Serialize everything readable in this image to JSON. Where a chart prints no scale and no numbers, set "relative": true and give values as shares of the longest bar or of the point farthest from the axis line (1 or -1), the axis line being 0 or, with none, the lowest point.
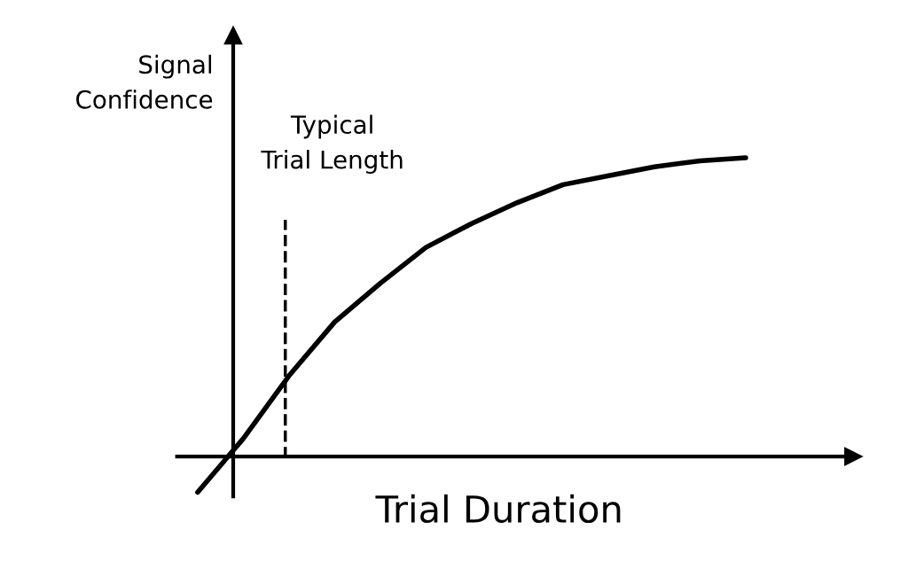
{
  "chart_data": {
    "type": "line",
    "relative": true,
    "xlabel": "Trial Duration",
    "ylabel": "Signal\nConfidence",
    "categories": [
      null,
      null,
      null,
      null,
      null,
      null,
      null,
      null,
      null,
      null,
      null,
      null,
      null
    ],
    "series": [
      {
        "color": "#000000",
        "values": [
          -0.12,
          0.06,
          0.27,
          0.45,
          0.58,
          0.7,
          0.78,
          0.85,
          0.91,
          0.94,
          0.97,
          0.99,
          1.0
        ]
      }
    ],
    "annotations": [
      "Typical\nTrial Length"
    ],
    "legend": false,
    "marker": "none",
    "line_style": "solid"
  }
}
